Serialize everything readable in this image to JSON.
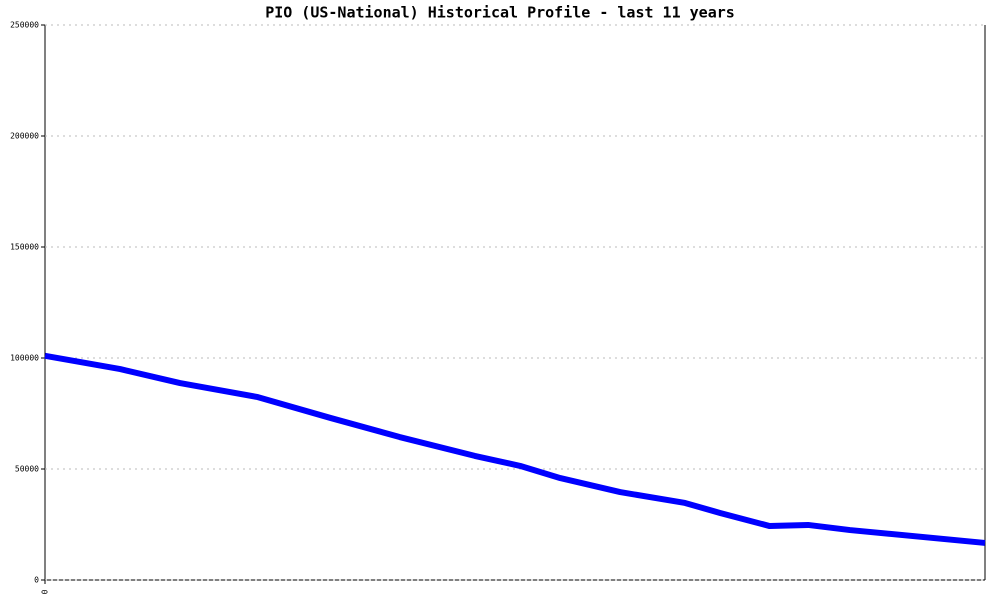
{
  "chart_data": {
    "type": "line",
    "title": "PIO (US-National) Historical Profile - last 11 years",
    "x": [
      0,
      0.88,
      1.58,
      2.49,
      3.34,
      4.15,
      5.03,
      5.56,
      6.03,
      6.73,
      7.49,
      7.9,
      8.48,
      8.93,
      9.42,
      11
    ],
    "series": [
      {
        "color": "#0000ff",
        "values": [
          101000,
          95000,
          88700,
          82400,
          73000,
          64400,
          55900,
          51400,
          45900,
          39600,
          34700,
          30200,
          24300,
          24800,
          22500,
          16700
        ]
      }
    ],
    "xlim": [
      0,
      11
    ],
    "xticks": [
      0
    ],
    "ylim": [
      0,
      250000
    ],
    "yticks": [
      0,
      50000,
      100000,
      150000,
      200000,
      250000
    ],
    "grid": true
  }
}
